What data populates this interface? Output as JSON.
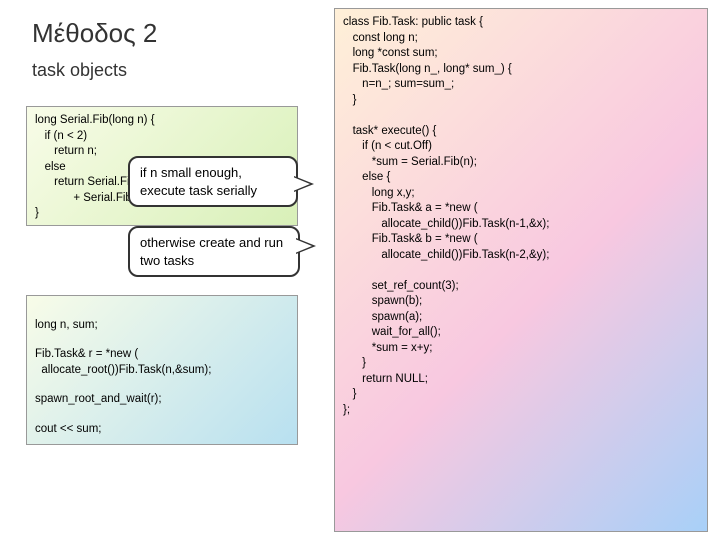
{
  "title": "Μέθοδος 2",
  "subtitle": "task objects",
  "codebox1": "long Serial.Fib(long n) {\n   if (n < 2)\n      return n;\n   else\n      return Serial.Fib(n-1)\n            + Serial.Fib(n-2);\n}",
  "codebox2_line1": "long n, sum;",
  "codebox2_line2": "Fib.Task& r = *new (\n  allocate_root())Fib.Task(n,&sum);",
  "codebox2_line3": "spawn_root_and_wait(r);",
  "codebox2_line4": "cout << sum;",
  "codebox3": "class Fib.Task: public task {\n   const long n;\n   long *const sum;\n   Fib.Task(long n_, long* sum_) {\n      n=n_; sum=sum_;\n   }\n\n   task* execute() {\n      if (n < cut.Off)\n         *sum = Serial.Fib(n);\n      else {\n         long x,y;\n         Fib.Task& a = *new (\n            allocate_child())Fib.Task(n-1,&x);\n         Fib.Task& b = *new (\n            allocate_child())Fib.Task(n-2,&y);\n\n         set_ref_count(3);\n         spawn(b);\n         spawn(a);\n         wait_for_all();\n         *sum = x+y;\n      }\n      return NULL;\n   }\n};",
  "callout1": "if n small enough,\nexecute task serially",
  "callout2": "otherwise create and run\ntwo tasks",
  "colors": {
    "box1_gradient": [
      "#f8fce8",
      "#d8f0b8"
    ],
    "box2_gradient": [
      "#f8fce8",
      "#b8e0f0"
    ],
    "box3_gradient": [
      "#fff0d8",
      "#f8c8e0",
      "#a8d0f8"
    ],
    "border": "#999999",
    "callout_border": "#333333",
    "text": "#333333"
  },
  "fonts": {
    "title_size": 26,
    "subtitle_size": 18,
    "code_size": 11.5,
    "callout_size": 13
  }
}
